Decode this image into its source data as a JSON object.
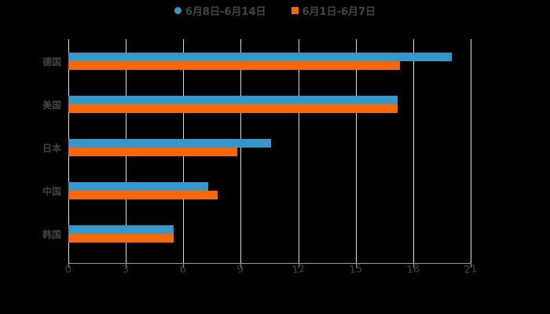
{
  "chart_data": {
    "type": "bar",
    "orientation": "horizontal",
    "title": "",
    "xlabel": "",
    "ylabel": "",
    "categories": [
      "德国",
      "美国",
      "日本",
      "中国",
      "韩国"
    ],
    "series": [
      {
        "name": "6月8日-6月14日",
        "color": "#3399cc",
        "marker": "circle",
        "values": [
          20.0,
          17.2,
          10.6,
          7.3,
          5.5
        ]
      },
      {
        "name": "6月1日-6月7日",
        "color": "#ff6600",
        "marker": "square",
        "values": [
          17.3,
          17.2,
          8.8,
          7.8,
          5.5
        ]
      }
    ],
    "xlim": [
      0,
      21
    ],
    "xticks": [
      "0",
      "3",
      "6",
      "9",
      "12",
      "15",
      "18",
      "21"
    ],
    "grid": true,
    "legend_position": "top"
  }
}
